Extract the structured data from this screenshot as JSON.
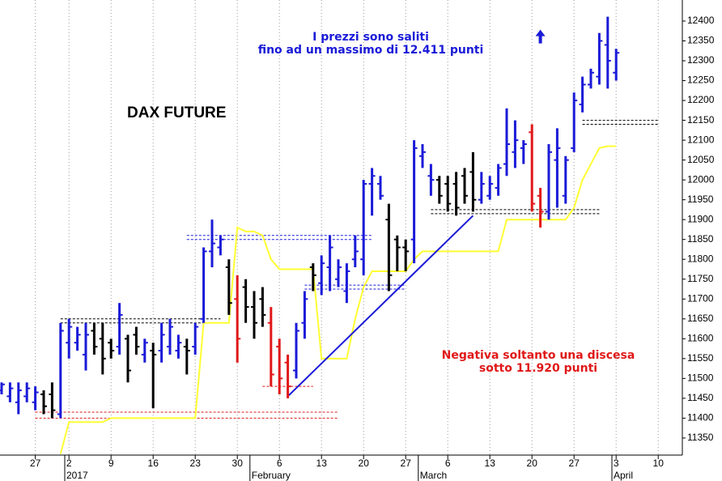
{
  "chart_data": {
    "type": "ohlc",
    "title": "DAX FUTURE",
    "categories": [
      null,
      null,
      null,
      null,
      "27",
      null,
      null,
      null,
      "2",
      null,
      null,
      null,
      null,
      "9",
      null,
      null,
      null,
      null,
      "16",
      null,
      null,
      null,
      null,
      "23",
      null,
      null,
      null,
      null,
      "30",
      null,
      null,
      null,
      null,
      "6",
      null,
      null,
      null,
      null,
      "13",
      null,
      null,
      null,
      null,
      "20",
      null,
      null,
      null,
      null,
      "27",
      null,
      null,
      null,
      null,
      "6",
      null,
      null,
      null,
      null,
      "13",
      null,
      null,
      null,
      null,
      "20",
      null,
      null,
      null,
      null,
      "27",
      null,
      null,
      null,
      null,
      "3",
      null,
      null,
      null,
      null,
      "10"
    ],
    "months": [
      null,
      null,
      null,
      null,
      null,
      null,
      null,
      null,
      "2017",
      null,
      null,
      null,
      null,
      null,
      null,
      null,
      null,
      null,
      null,
      null,
      null,
      null,
      null,
      null,
      null,
      null,
      null,
      null,
      null,
      null,
      "February",
      null,
      null,
      null,
      null,
      null,
      null,
      null,
      null,
      null,
      null,
      null,
      null,
      null,
      null,
      null,
      null,
      null,
      null,
      null,
      "March",
      null,
      null,
      null,
      null,
      null,
      null,
      null,
      null,
      null,
      null,
      null,
      null,
      null,
      null,
      null,
      null,
      null,
      null,
      null,
      null,
      null,
      null,
      "April",
      null,
      null,
      null,
      null,
      null
    ],
    "ohlc": [
      [
        11470,
        11490,
        11460,
        11485
      ],
      [
        11455,
        11490,
        11440,
        11475
      ],
      [
        11440,
        11490,
        11410,
        11470
      ],
      [
        11455,
        11490,
        11440,
        11475
      ],
      [
        11440,
        11480,
        11420,
        11465
      ],
      [
        11460,
        11470,
        11410,
        11430
      ],
      [
        11460,
        11490,
        11400,
        11420
      ],
      [
        11410,
        11640,
        11400,
        11620
      ],
      [
        11590,
        11650,
        11550,
        11630
      ],
      [
        11590,
        11630,
        11570,
        11610
      ],
      [
        11560,
        11640,
        11520,
        11610
      ],
      [
        11620,
        11640,
        11560,
        11580
      ],
      [
        11600,
        11640,
        11510,
        11550
      ],
      [
        11590,
        11600,
        11550,
        11570
      ],
      [
        11580,
        11690,
        11560,
        11660
      ],
      [
        11600,
        11610,
        11490,
        11520
      ],
      [
        11610,
        11630,
        11560,
        11580
      ],
      [
        11560,
        11600,
        11540,
        11590
      ],
      [
        11570,
        11590,
        11425,
        11560
      ],
      [
        11570,
        11640,
        11540,
        11610
      ],
      [
        11580,
        11650,
        11560,
        11630
      ],
      [
        11570,
        11610,
        11550,
        11590
      ],
      [
        11580,
        11600,
        11510,
        11570
      ],
      [
        11580,
        11640,
        11560,
        11630
      ],
      [
        11650,
        11830,
        11640,
        11820
      ],
      [
        11820,
        11900,
        11780,
        11840
      ],
      [
        11830,
        11860,
        11810,
        11850
      ],
      [
        11780,
        11800,
        11660,
        11690
      ],
      [
        11700,
        11760,
        11540,
        11600
      ],
      [
        11730,
        11750,
        11640,
        11680
      ],
      [
        11680,
        11720,
        11600,
        11640
      ],
      [
        11700,
        11730,
        11630,
        11660
      ],
      [
        11640,
        11680,
        11480,
        11510
      ],
      [
        11580,
        11600,
        11460,
        11500
      ],
      [
        11540,
        11560,
        11450,
        11480
      ],
      [
        11520,
        11640,
        11500,
        11620
      ],
      [
        11640,
        11720,
        11600,
        11700
      ],
      [
        11780,
        11790,
        11720,
        11760
      ],
      [
        11740,
        11810,
        11710,
        11790
      ],
      [
        11780,
        11860,
        11720,
        11830
      ],
      [
        11750,
        11800,
        11730,
        11780
      ],
      [
        11720,
        11790,
        11690,
        11770
      ],
      [
        11800,
        11860,
        11780,
        11820
      ],
      [
        11800,
        12000,
        11760,
        11990
      ],
      [
        11990,
        12030,
        11910,
        12010
      ],
      [
        11990,
        12010,
        11950,
        11960
      ],
      [
        11900,
        11940,
        11720,
        11760
      ],
      [
        11850,
        11860,
        11770,
        11830
      ],
      [
        11830,
        11850,
        11770,
        11820
      ],
      [
        11850,
        12100,
        11790,
        12080
      ],
      [
        12060,
        12090,
        12030,
        12070
      ],
      [
        12010,
        12040,
        11960,
        12000
      ],
      [
        12000,
        12010,
        11940,
        11960
      ],
      [
        11990,
        12010,
        11920,
        11940
      ],
      [
        11990,
        12020,
        11910,
        11930
      ],
      [
        12010,
        12030,
        11940,
        11960
      ],
      [
        12020,
        12070,
        11920,
        11950
      ],
      [
        11950,
        12020,
        11940,
        11990
      ],
      [
        11960,
        12010,
        11950,
        11990
      ],
      [
        11980,
        12040,
        11960,
        12030
      ],
      [
        12040,
        12180,
        12010,
        12090
      ],
      [
        12070,
        12150,
        12030,
        12100
      ],
      [
        12080,
        12100,
        12040,
        12090
      ],
      [
        12120,
        12140,
        11920,
        11940
      ],
      [
        11960,
        11980,
        11880,
        11920
      ],
      [
        11920,
        12090,
        11900,
        12070
      ],
      [
        12050,
        12130,
        11930,
        12080
      ],
      [
        11960,
        12060,
        11940,
        12050
      ],
      [
        12080,
        12220,
        12070,
        12200
      ],
      [
        12190,
        12260,
        12170,
        12240
      ],
      [
        12240,
        12280,
        12230,
        12270
      ],
      [
        12260,
        12370,
        12240,
        12350
      ],
      [
        12340,
        12411,
        12230,
        12300
      ],
      [
        12270,
        12330,
        12250,
        12320
      ],
      null,
      null,
      null,
      null,
      null
    ],
    "colors": [
      "#1a1ad8",
      "#1a1ad8",
      "#1a1ad8",
      "#1a1ad8",
      "#1a1ad8",
      "#000000",
      "#000000",
      "#1a1ad8",
      "#1a1ad8",
      "#1a1ad8",
      "#1a1ad8",
      "#000000",
      "#000000",
      "#000000",
      "#1a1ad8",
      "#000000",
      "#000000",
      "#1a1ad8",
      "#000000",
      "#1a1ad8",
      "#1a1ad8",
      "#1a1ad8",
      "#000000",
      "#1a1ad8",
      "#1a1ad8",
      "#1a1ad8",
      "#1a1ad8",
      "#000000",
      "#e01818",
      "#000000",
      "#000000",
      "#000000",
      "#e01818",
      "#e01818",
      "#e01818",
      "#1a1ad8",
      "#1a1ad8",
      "#000000",
      "#1a1ad8",
      "#1a1ad8",
      "#1a1ad8",
      "#1a1ad8",
      "#1a1ad8",
      "#1a1ad8",
      "#1a1ad8",
      "#1a1ad8",
      "#000000",
      "#000000",
      "#000000",
      "#1a1ad8",
      "#1a1ad8",
      "#1a1ad8",
      "#000000",
      "#000000",
      "#000000",
      "#000000",
      "#000000",
      "#1a1ad8",
      "#1a1ad8",
      "#1a1ad8",
      "#1a1ad8",
      "#1a1ad8",
      "#1a1ad8",
      "#e01818",
      "#e01818",
      "#1a1ad8",
      "#1a1ad8",
      "#1a1ad8",
      "#1a1ad8",
      "#1a1ad8",
      "#1a1ad8",
      "#1a1ad8",
      "#1a1ad8",
      "#1a1ad8",
      null,
      null,
      null,
      null,
      null
    ],
    "stop_line": {
      "color": "#ffff33",
      "values": [
        null,
        null,
        null,
        null,
        null,
        null,
        null,
        11310,
        11390,
        11390,
        11390,
        11390,
        11390,
        11400,
        11400,
        11400,
        11400,
        11400,
        11400,
        11400,
        11400,
        11400,
        11400,
        11400,
        11640,
        11640,
        11640,
        11640,
        11880,
        11870,
        11870,
        11860,
        11800,
        11775,
        11775,
        11775,
        11775,
        11775,
        11550,
        11550,
        11550,
        11550,
        11650,
        11730,
        11770,
        11770,
        11770,
        11770,
        11770,
        11800,
        11820,
        11820,
        11820,
        11820,
        11820,
        11820,
        11820,
        11820,
        11820,
        11820,
        11900,
        11900,
        11900,
        11900,
        11900,
        11900,
        11900,
        11900,
        11930,
        12000,
        12040,
        12080,
        12085,
        12085,
        null,
        null,
        null,
        null,
        null
      ]
    },
    "levels": [
      {
        "values": [
          11650,
          11640
        ],
        "from": 7,
        "to": 26,
        "color": "#000000"
      },
      {
        "values": [
          11415,
          11400
        ],
        "from": 4,
        "to": 40,
        "color": "#e01818"
      },
      {
        "values": [
          11480
        ],
        "from": 31,
        "to": 37,
        "color": "#e01818"
      },
      {
        "values": [
          11860,
          11850
        ],
        "from": 22,
        "to": 44,
        "color": "#1a1ad8"
      },
      {
        "values": [
          11735,
          11725
        ],
        "from": 36,
        "to": 48,
        "color": "#1a1ad8"
      },
      {
        "values": [
          11925,
          11915
        ],
        "from": 51,
        "to": 71,
        "color": "#000000"
      },
      {
        "values": [
          12150,
          12140
        ],
        "from": 69,
        "to": 78,
        "color": "#000000"
      }
    ],
    "trendline": {
      "from": 34,
      "to": 56,
      "values": [
        11455,
        11910
      ],
      "color": "#1a1ad8"
    },
    "arrow": {
      "at": 64,
      "value": 12360,
      "color": "#1a1ad8"
    },
    "annotations": [
      {
        "lines": [
          "I prezzi sono saliti",
          "fino ad un massimo di 12.411 punti"
        ],
        "color": "#1a1ad8"
      },
      {
        "lines": [
          "Negativa soltanto una discesa",
          "sotto 11.920 punti"
        ],
        "color": "#e01818"
      }
    ],
    "ylim": [
      11307,
      12453
    ],
    "yticks": [
      11350,
      11400,
      11450,
      11500,
      11550,
      11600,
      11650,
      11700,
      11750,
      11800,
      11850,
      11900,
      11950,
      12000,
      12050,
      12100,
      12150,
      12200,
      12250,
      12300,
      12350,
      12400
    ],
    "grid": true
  }
}
